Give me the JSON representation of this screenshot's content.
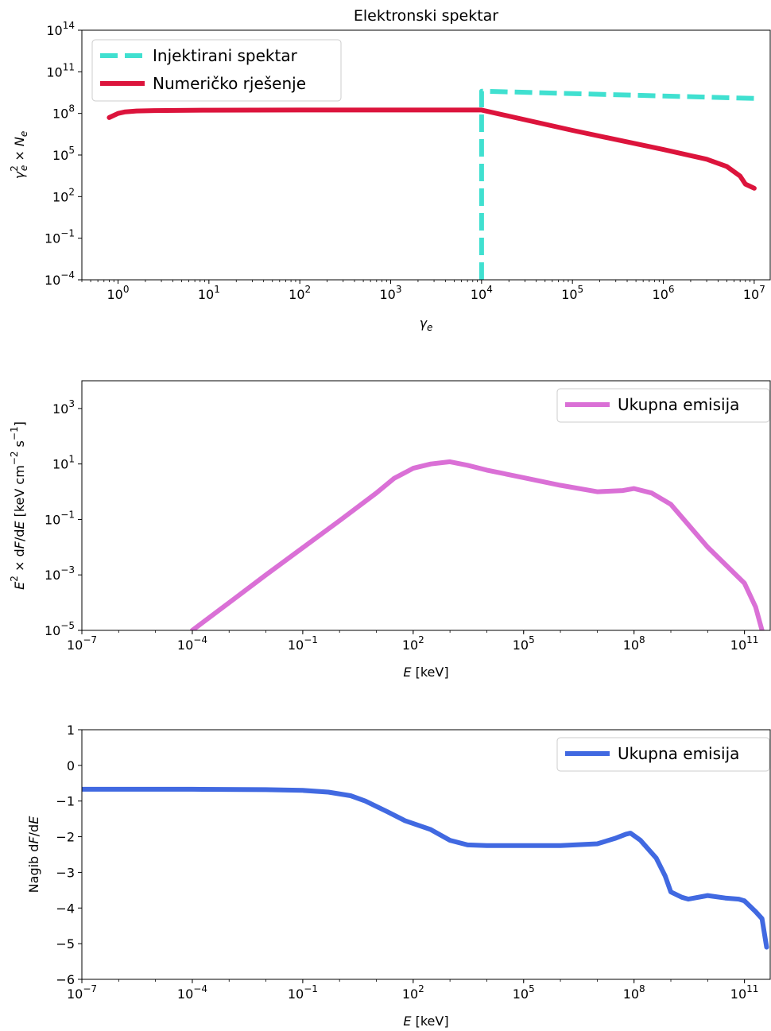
{
  "chart_data": [
    {
      "type": "line",
      "title": "Elektronski spektar",
      "xlabel": "γ_e",
      "ylabel": "γ_e² × N_e",
      "xscale": "log",
      "yscale": "log",
      "xlim": [
        0.4,
        15000000
      ],
      "ylim": [
        0.0001,
        100000000000000
      ],
      "x_tick_labels": [
        {
          "v": 1,
          "base": "10",
          "exp": "0"
        },
        {
          "v": 10,
          "base": "10",
          "exp": "1"
        },
        {
          "v": 100,
          "base": "10",
          "exp": "2"
        },
        {
          "v": 1000,
          "base": "10",
          "exp": "3"
        },
        {
          "v": 10000,
          "base": "10",
          "exp": "4"
        },
        {
          "v": 100000,
          "base": "10",
          "exp": "5"
        },
        {
          "v": 1000000,
          "base": "10",
          "exp": "6"
        },
        {
          "v": 10000000,
          "base": "10",
          "exp": "7"
        }
      ],
      "y_tick_labels": [
        {
          "v": 0.0001,
          "base": "10",
          "exp": "−4"
        },
        {
          "v": 0.1,
          "base": "10",
          "exp": "−1"
        },
        {
          "v": 100,
          "base": "10",
          "exp": "2"
        },
        {
          "v": 100000,
          "base": "10",
          "exp": "5"
        },
        {
          "v": 100000000,
          "base": "10",
          "exp": "8"
        },
        {
          "v": 100000000000,
          "base": "10",
          "exp": "11"
        },
        {
          "v": 100000000000000,
          "base": "10",
          "exp": "14"
        }
      ],
      "legend_position": "upper-left",
      "series": [
        {
          "name": "Injektirani spektar",
          "color": "#40E0D0",
          "dash": "dashed",
          "points": [
            [
              10000,
              0.0001
            ],
            [
              10000,
              4000000000
            ],
            [
              10000000,
              1200000000
            ]
          ]
        },
        {
          "name": "Numeričko rješenje",
          "color": "#DC143C",
          "dash": "solid",
          "points": [
            [
              0.8,
              50000000
            ],
            [
              1.0,
              100000000
            ],
            [
              1.2,
              130000000
            ],
            [
              1.6,
              150000000
            ],
            [
              2.5,
              160000000
            ],
            [
              10,
              170000000
            ],
            [
              100,
              175000000
            ],
            [
              1000,
              175000000
            ],
            [
              10000,
              175000000
            ],
            [
              100000,
              6000000
            ],
            [
              1000000,
              250000
            ],
            [
              3000000,
              50000
            ],
            [
              5000000,
              15000
            ],
            [
              7000000,
              3000
            ],
            [
              8000000,
              800
            ],
            [
              10000000,
              400
            ]
          ]
        }
      ]
    },
    {
      "type": "line",
      "title": "",
      "xlabel": "E [keV]",
      "ylabel": "E² × dF/dE [keV cm⁻² s⁻¹]",
      "xscale": "log",
      "yscale": "log",
      "xlim": [
        1e-07,
        500000000000.0
      ],
      "ylim": [
        1e-05,
        10000
      ],
      "x_tick_labels": [
        {
          "v": 1e-07,
          "base": "10",
          "exp": "−7"
        },
        {
          "v": 0.0001,
          "base": "10",
          "exp": "−4"
        },
        {
          "v": 0.1,
          "base": "10",
          "exp": "−1"
        },
        {
          "v": 100,
          "base": "10",
          "exp": "2"
        },
        {
          "v": 100000,
          "base": "10",
          "exp": "5"
        },
        {
          "v": 100000000,
          "base": "10",
          "exp": "8"
        },
        {
          "v": 100000000000,
          "base": "10",
          "exp": "11"
        }
      ],
      "y_tick_labels": [
        {
          "v": 1e-05,
          "base": "10",
          "exp": "−5"
        },
        {
          "v": 0.001,
          "base": "10",
          "exp": "−3"
        },
        {
          "v": 0.1,
          "base": "10",
          "exp": "−1"
        },
        {
          "v": 10,
          "base": "10",
          "exp": "1"
        },
        {
          "v": 1000,
          "base": "10",
          "exp": "3"
        }
      ],
      "legend_position": "upper-right",
      "series": [
        {
          "name": "Ukupna emisija",
          "color": "#DA70D6",
          "dash": "solid",
          "points": [
            [
              0.0001,
              1e-05
            ],
            [
              0.001,
              0.0001
            ],
            [
              0.01,
              0.001
            ],
            [
              0.1,
              0.0095
            ],
            [
              1,
              0.09
            ],
            [
              10,
              0.9
            ],
            [
              30,
              3
            ],
            [
              100,
              7
            ],
            [
              300,
              10
            ],
            [
              1000,
              12
            ],
            [
              3000,
              9
            ],
            [
              10000,
              6
            ],
            [
              100000,
              3.2
            ],
            [
              1000000,
              1.7
            ],
            [
              10000000,
              1.0
            ],
            [
              50000000,
              1.1
            ],
            [
              100000000,
              1.3
            ],
            [
              300000000,
              0.9
            ],
            [
              1000000000,
              0.35
            ],
            [
              10000000000,
              0.01
            ],
            [
              100000000000,
              0.0005
            ],
            [
              200000000000,
              7e-05
            ],
            [
              300000000000,
              1e-05
            ]
          ]
        }
      ]
    },
    {
      "type": "line",
      "title": "",
      "xlabel": "E [keV]",
      "ylabel": "Nagib dF/dE",
      "xscale": "log",
      "yscale": "linear",
      "xlim": [
        1e-07,
        500000000000.0
      ],
      "ylim": [
        -6,
        1
      ],
      "x_tick_labels": [
        {
          "v": 1e-07,
          "base": "10",
          "exp": "−7"
        },
        {
          "v": 0.0001,
          "base": "10",
          "exp": "−4"
        },
        {
          "v": 0.1,
          "base": "10",
          "exp": "−1"
        },
        {
          "v": 100,
          "base": "10",
          "exp": "2"
        },
        {
          "v": 100000,
          "base": "10",
          "exp": "5"
        },
        {
          "v": 100000000,
          "base": "10",
          "exp": "8"
        },
        {
          "v": 100000000000,
          "base": "10",
          "exp": "11"
        }
      ],
      "y_tick_labels": [
        {
          "v": 1,
          "label": "1"
        },
        {
          "v": 0,
          "label": "0"
        },
        {
          "v": -1,
          "label": "−1"
        },
        {
          "v": -2,
          "label": "−2"
        },
        {
          "v": -3,
          "label": "−3"
        },
        {
          "v": -4,
          "label": "−4"
        },
        {
          "v": -5,
          "label": "−5"
        },
        {
          "v": -6,
          "label": "−6"
        }
      ],
      "legend_position": "upper-right",
      "series": [
        {
          "name": "Ukupna emisija",
          "color": "#4169E1",
          "dash": "solid",
          "points": [
            [
              1e-07,
              -0.67
            ],
            [
              0.0001,
              -0.67
            ],
            [
              0.01,
              -0.68
            ],
            [
              0.1,
              -0.7
            ],
            [
              0.5,
              -0.75
            ],
            [
              2,
              -0.85
            ],
            [
              5,
              -1.0
            ],
            [
              20,
              -1.3
            ],
            [
              60,
              -1.55
            ],
            [
              300,
              -1.8
            ],
            [
              1000,
              -2.1
            ],
            [
              3000,
              -2.23
            ],
            [
              10000,
              -2.25
            ],
            [
              100000,
              -2.25
            ],
            [
              1000000,
              -2.25
            ],
            [
              10000000,
              -2.2
            ],
            [
              30000000,
              -2.05
            ],
            [
              60000000,
              -1.93
            ],
            [
              80000000,
              -1.9
            ],
            [
              150000000,
              -2.1
            ],
            [
              400000000,
              -2.6
            ],
            [
              700000000,
              -3.1
            ],
            [
              1000000000,
              -3.55
            ],
            [
              2000000000,
              -3.7
            ],
            [
              3000000000,
              -3.75
            ],
            [
              10000000000,
              -3.65
            ],
            [
              30000000000,
              -3.72
            ],
            [
              70000000000,
              -3.75
            ],
            [
              100000000000,
              -3.8
            ],
            [
              200000000000,
              -4.1
            ],
            [
              300000000000,
              -4.3
            ],
            [
              400000000000,
              -5.1
            ]
          ]
        }
      ]
    }
  ]
}
